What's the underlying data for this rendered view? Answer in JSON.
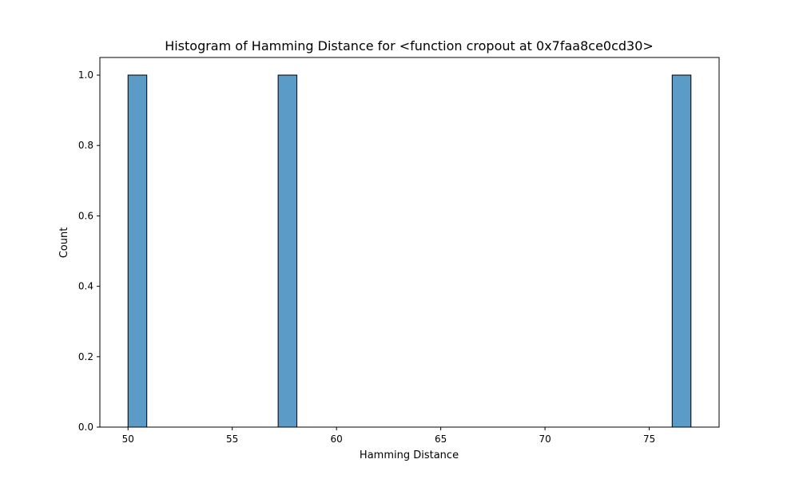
{
  "chart_data": {
    "type": "bar",
    "title": "Histogram of Hamming Distance for <function cropout at 0x7faa8ce0cd30>",
    "xlabel": "Hamming Distance",
    "ylabel": "Count",
    "xlim": [
      48.65,
      78.35
    ],
    "ylim": [
      0,
      1.05
    ],
    "xticks": [
      50,
      55,
      60,
      65,
      70,
      75
    ],
    "xtick_labels": [
      "50",
      "55",
      "60",
      "65",
      "70",
      "75"
    ],
    "yticks": [
      0.0,
      0.2,
      0.4,
      0.6,
      0.8,
      1.0
    ],
    "ytick_labels": [
      "0.0",
      "0.2",
      "0.4",
      "0.6",
      "0.8",
      "1.0"
    ],
    "grid": false,
    "bars": [
      {
        "x0": 50.0,
        "x1": 50.9,
        "count": 1
      },
      {
        "x0": 57.2,
        "x1": 58.1,
        "count": 1
      },
      {
        "x0": 76.1,
        "x1": 77.0,
        "count": 1
      }
    ],
    "bar_color": "#5a9bc8"
  }
}
